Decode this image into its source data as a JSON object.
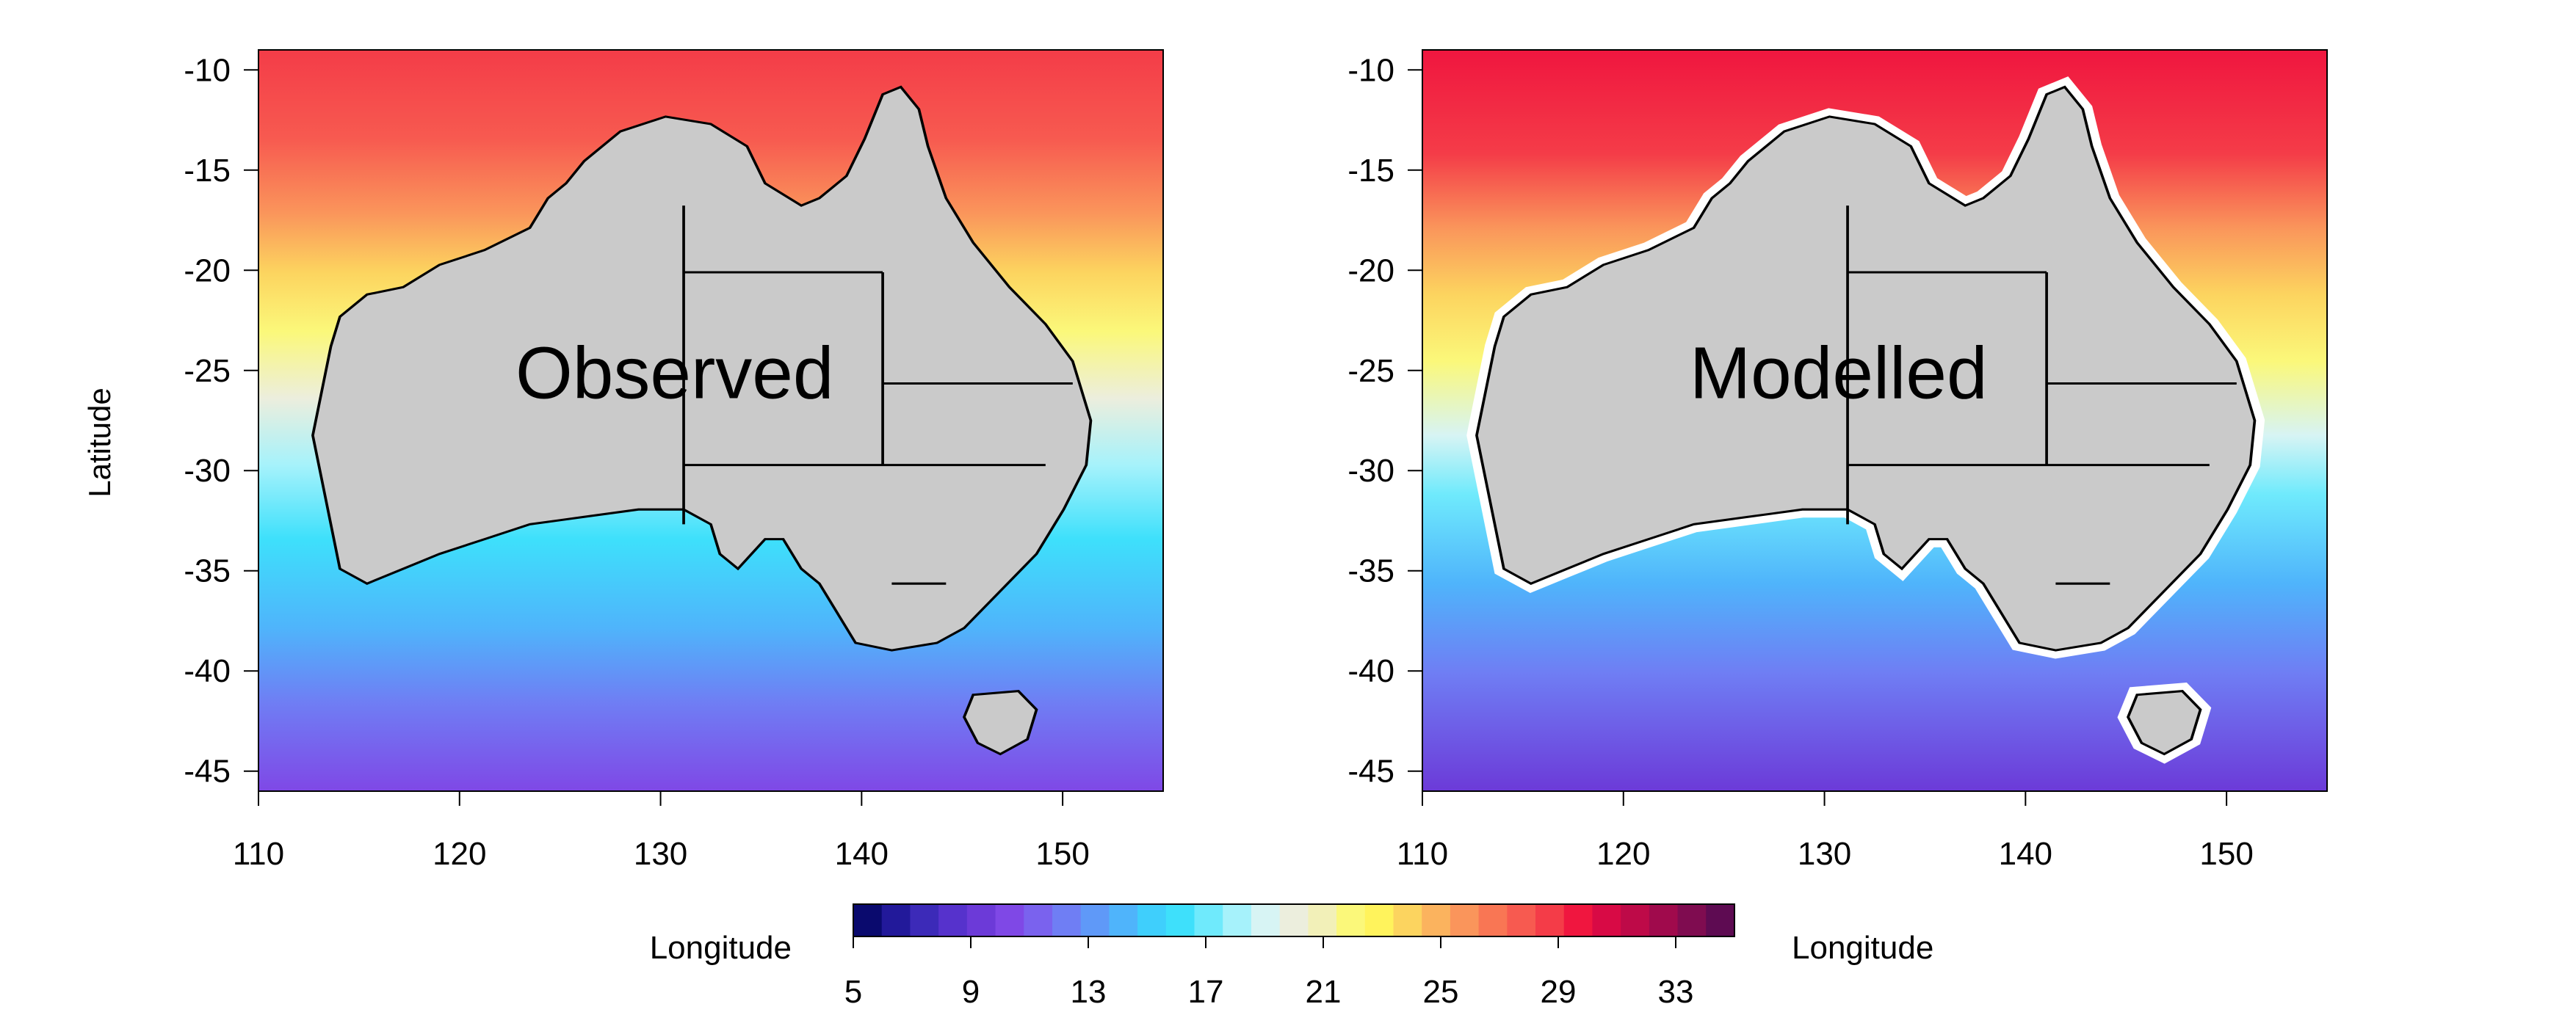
{
  "figure": {
    "panels": [
      {
        "id": "observed",
        "label": "Observed",
        "xticks": [
          110,
          120,
          130,
          140,
          150
        ],
        "yticks": [
          -10,
          -15,
          -20,
          -25,
          -30,
          -35,
          -40,
          -45
        ],
        "xlim": [
          110,
          155
        ],
        "ylim": [
          -46,
          -9
        ]
      },
      {
        "id": "modelled",
        "label": "Modelled",
        "xticks": [
          110,
          120,
          130,
          140,
          150
        ],
        "yticks": [
          -10,
          -15,
          -20,
          -25,
          -30,
          -35,
          -40,
          -45
        ],
        "xlim": [
          110,
          155
        ],
        "ylim": [
          -46,
          -9
        ]
      }
    ],
    "ylabel": "Latitude",
    "colorbar": {
      "left_label": "Longitude",
      "right_label": "Longitude",
      "min": 5,
      "max": 35,
      "tick_values": [
        5,
        9,
        13,
        17,
        21,
        25,
        29,
        33
      ],
      "colors": [
        "#0a0a6e",
        "#22199a",
        "#3c2ab8",
        "#5632cc",
        "#6c3ad8",
        "#7f48e6",
        "#7a62ee",
        "#6f7ef4",
        "#5f99f8",
        "#4fb4fb",
        "#3fcffc",
        "#3ee0fb",
        "#6feafc",
        "#a6f2fb",
        "#d7f4f4",
        "#eceedd",
        "#f2f0b8",
        "#fbf87a",
        "#fff35c",
        "#fcd45f",
        "#fbb35e",
        "#fa955b",
        "#f97654",
        "#f75a50",
        "#f43c48",
        "#f0163f",
        "#d80a45",
        "#be0a48",
        "#a00a4c",
        "#7f0c50",
        "#5e0b52"
      ]
    },
    "colors": {
      "land": "#cacaca",
      "coast_outline": "#000000",
      "model_gap": "#ffffff"
    }
  }
}
